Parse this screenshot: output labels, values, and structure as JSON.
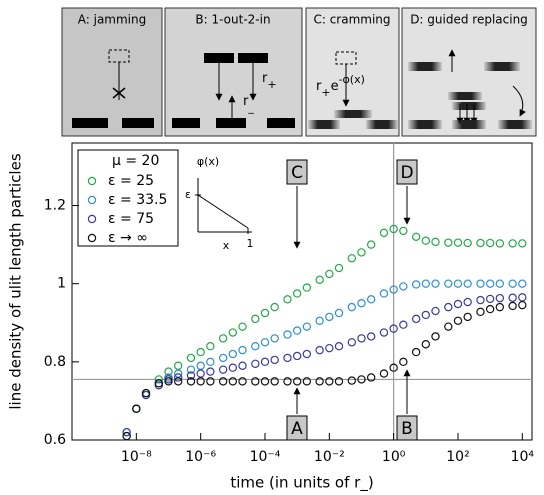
{
  "chart_data": {
    "type": "scatter",
    "x_label": "time (in units of r_)",
    "y_label": "line density of ulit length particles",
    "log_x": true,
    "xlim": [
      1e-10,
      20000.0
    ],
    "ylim": [
      0.6,
      1.36
    ],
    "xticks": [
      {
        "value": 1e-08,
        "label": "10⁻⁸"
      },
      {
        "value": 1e-06,
        "label": "10⁻⁶"
      },
      {
        "value": 0.0001,
        "label": "10⁻⁴"
      },
      {
        "value": 0.01,
        "label": "10⁻²"
      },
      {
        "value": 1,
        "label": "10⁰"
      },
      {
        "value": 100,
        "label": "10²"
      },
      {
        "value": 10000,
        "label": "10⁴"
      }
    ],
    "yticks": [
      0.6,
      0.8,
      1,
      1.2
    ],
    "reference_lines": {
      "x": 1,
      "y": 0.755
    },
    "legend_title": "μ = 20",
    "x": [
      5e-09,
      1e-08,
      2e-08,
      5e-08,
      1e-07,
      2e-07,
      5e-07,
      1e-06,
      2e-06,
      5e-06,
      1e-05,
      2e-05,
      5e-05,
      0.0001,
      0.0002,
      0.0005,
      0.001,
      0.002,
      0.005,
      0.01,
      0.02,
      0.05,
      0.1,
      0.2,
      0.5,
      1,
      2,
      5,
      10,
      20,
      50,
      100,
      200,
      500,
      1000,
      2000,
      5000,
      10000
    ],
    "series": [
      {
        "name": "ε = 25",
        "color": "#22a84a",
        "values": [
          0.61,
          0.68,
          0.72,
          0.755,
          0.775,
          0.79,
          0.81,
          0.825,
          0.84,
          0.86,
          0.875,
          0.89,
          0.91,
          0.925,
          0.94,
          0.96,
          0.975,
          0.99,
          1.01,
          1.025,
          1.04,
          1.065,
          1.08,
          1.1,
          1.13,
          1.14,
          1.135,
          1.12,
          1.11,
          1.107,
          1.105,
          1.105,
          1.104,
          1.104,
          1.104,
          1.103,
          1.103,
          1.103
        ]
      },
      {
        "name": "ε = 33.5",
        "color": "#2e8fd0",
        "values": [
          0.62,
          0.68,
          0.715,
          0.745,
          0.76,
          0.77,
          0.78,
          0.79,
          0.8,
          0.81,
          0.82,
          0.83,
          0.84,
          0.85,
          0.86,
          0.87,
          0.88,
          0.89,
          0.905,
          0.915,
          0.925,
          0.94,
          0.95,
          0.96,
          0.975,
          0.985,
          0.993,
          0.998,
          1.0,
          1.0,
          1.0,
          1.0,
          1.0,
          1.0,
          1.0,
          1.0,
          1.0,
          1.0
        ]
      },
      {
        "name": "ε = 75",
        "color": "#3a3a9a",
        "values": [
          0.62,
          0.68,
          0.715,
          0.74,
          0.755,
          0.76,
          0.765,
          0.77,
          0.775,
          0.78,
          0.785,
          0.79,
          0.795,
          0.8,
          0.805,
          0.81,
          0.815,
          0.82,
          0.83,
          0.835,
          0.84,
          0.85,
          0.86,
          0.865,
          0.875,
          0.885,
          0.895,
          0.91,
          0.92,
          0.93,
          0.94,
          0.948,
          0.953,
          0.958,
          0.961,
          0.963,
          0.964,
          0.965
        ]
      },
      {
        "name": "ε → ∞",
        "color": "#111111",
        "values": [
          0.61,
          0.68,
          0.72,
          0.745,
          0.75,
          0.75,
          0.75,
          0.75,
          0.75,
          0.75,
          0.75,
          0.75,
          0.75,
          0.75,
          0.75,
          0.75,
          0.75,
          0.75,
          0.75,
          0.75,
          0.75,
          0.752,
          0.755,
          0.76,
          0.77,
          0.785,
          0.8,
          0.825,
          0.845,
          0.865,
          0.89,
          0.905,
          0.915,
          0.928,
          0.935,
          0.94,
          0.943,
          0.945
        ]
      }
    ],
    "annotations": [
      "C",
      "D",
      "A",
      "B"
    ],
    "inset_labels": {
      "y_axis": "φ(x)",
      "y_max": "ε",
      "x_axis": "x",
      "x_max": "1"
    },
    "panels": [
      {
        "title": "A: jamming",
        "labels": []
      },
      {
        "title": "B: 1-out-2-in",
        "labels": [
          [
            {
              "t": "r"
            },
            {
              "sub": "+"
            }
          ],
          [
            {
              "t": "r"
            },
            {
              "sub": "_"
            }
          ]
        ]
      },
      {
        "title": "C: cramming",
        "labels": [
          [
            {
              "t": "r"
            },
            {
              "sub": "+"
            },
            {
              "t": "e"
            },
            {
              "sup": "-φ(x)"
            }
          ]
        ]
      },
      {
        "title": "D: guided replacing",
        "labels": []
      }
    ]
  }
}
